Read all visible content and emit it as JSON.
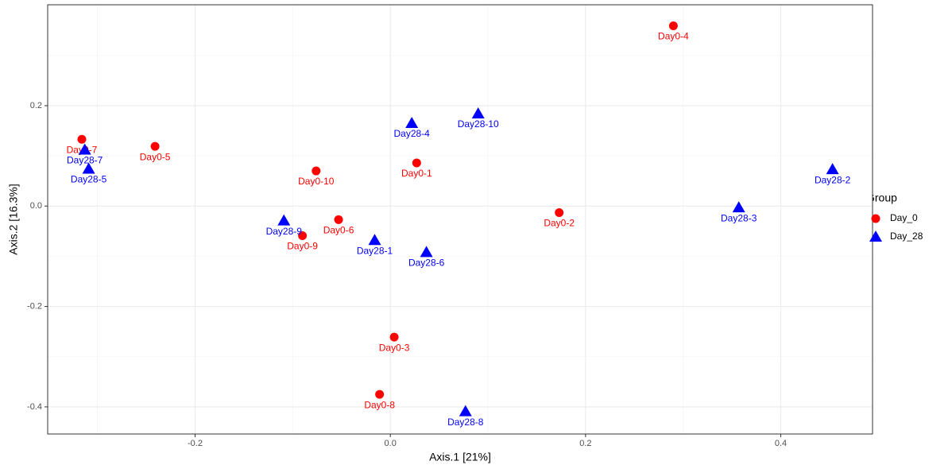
{
  "chart_data": {
    "type": "scatter",
    "x_label": "Axis.1   [21%]",
    "y_label": "Axis.2   [16.3%]",
    "legend_title": "Group",
    "legend": "right",
    "grid": true,
    "xlim": [
      -0.351,
      0.494
    ],
    "ylim": [
      -0.454,
      0.401
    ],
    "xticks": [
      -0.2,
      {
        "value": 0,
        "label": "0.0"
      },
      0.2,
      0.4
    ],
    "yticks": [
      -0.4,
      -0.2,
      {
        "value": 0,
        "label": "0.0"
      },
      0.2
    ],
    "series": [
      {
        "name": "Day_0",
        "color": "#ff0000",
        "marker": "circle",
        "labels": [
          "Day0-4",
          "Day0-7",
          "Day0-5",
          "Day0-10",
          "Day0-1",
          "Day0-2",
          "Day0-6",
          "Day0-9",
          "Day0-3",
          "Day0-8"
        ],
        "x": [
          0.29,
          -0.316,
          -0.241,
          -0.076,
          0.027,
          0.173,
          -0.053,
          -0.09,
          0.004,
          -0.011
        ],
        "values": [
          0.359,
          0.133,
          0.119,
          0.07,
          0.086,
          -0.013,
          -0.027,
          -0.059,
          -0.261,
          -0.375
        ]
      },
      {
        "name": "Day_28",
        "color": "#0000ff",
        "marker": "triangle",
        "labels": [
          "Day28-7",
          "Day28-5",
          "Day28-4",
          "Day28-10",
          "Day28-2",
          "Day28-3",
          "Day28-9",
          "Day28-1",
          "Day28-6",
          "Day28-8"
        ],
        "x": [
          -0.313,
          -0.309,
          0.022,
          0.09,
          0.453,
          0.357,
          -0.109,
          -0.016,
          0.037,
          0.077
        ],
        "values": [
          0.112,
          0.074,
          0.165,
          0.184,
          0.073,
          -0.003,
          -0.029,
          -0.068,
          -0.092,
          -0.409
        ]
      }
    ]
  }
}
